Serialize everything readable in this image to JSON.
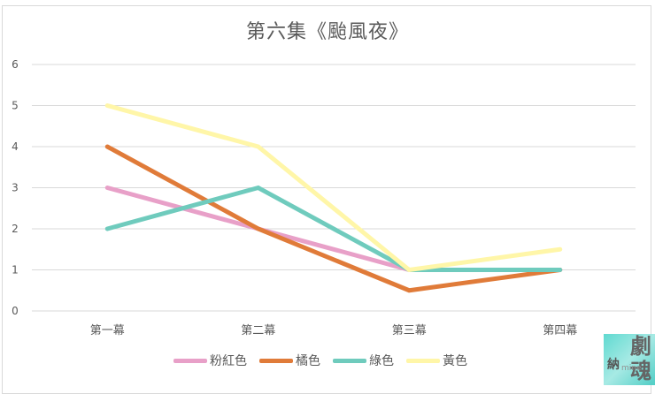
{
  "chart_data": {
    "type": "line",
    "title": "第六集《颱風夜》",
    "xlabel": "",
    "ylabel": "",
    "categories": [
      "第一幕",
      "第二幕",
      "第三幕",
      "第四幕"
    ],
    "ylim": [
      0,
      6
    ],
    "yticks": [
      0,
      1,
      2,
      3,
      4,
      5,
      6
    ],
    "grid": true,
    "legend_position": "bottom",
    "series": [
      {
        "name": "粉紅色",
        "color": "#e8a0c8",
        "values": [
          3,
          2,
          1,
          1
        ]
      },
      {
        "name": "橘色",
        "color": "#e07b39",
        "values": [
          4,
          2,
          0.5,
          1
        ]
      },
      {
        "name": "綠色",
        "color": "#6fcbbd",
        "values": [
          2,
          3,
          1,
          1
        ]
      },
      {
        "name": "黃色",
        "color": "#fff6a8",
        "values": [
          5,
          4,
          1,
          1.5
        ]
      }
    ]
  },
  "watermark": {
    "text_left": "納",
    "text_right": "劇魂",
    "text_small": "mine"
  }
}
